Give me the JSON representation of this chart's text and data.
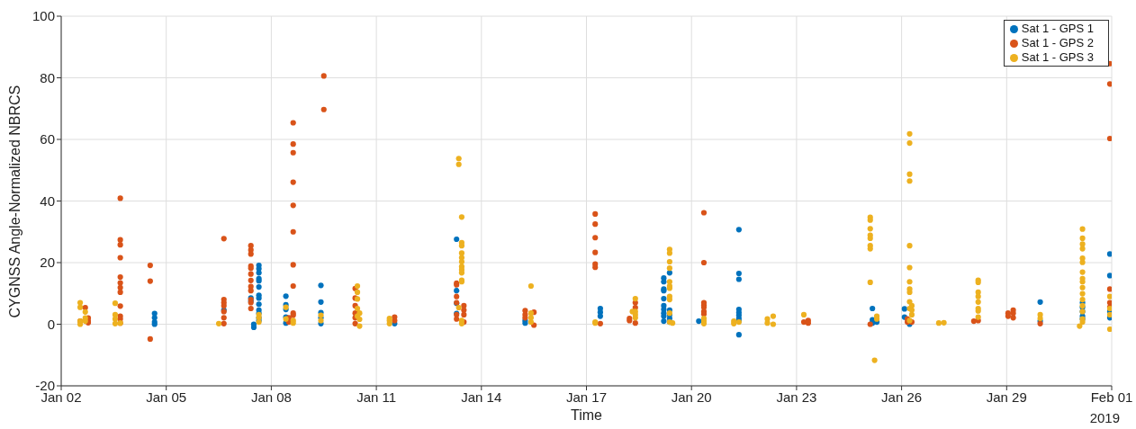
{
  "chart_data": {
    "type": "scatter",
    "xlabel": "Time",
    "ylabel": "CYGNSS Angle-Normalized NBRCS",
    "annotations": [
      "2019"
    ],
    "xlim": [
      "2019-01-02",
      "2019-02-01"
    ],
    "xticks": [
      {
        "value": "2019-01-02",
        "label": "Jan 02"
      },
      {
        "value": "2019-01-05",
        "label": "Jan 05"
      },
      {
        "value": "2019-01-08",
        "label": "Jan 08"
      },
      {
        "value": "2019-01-11",
        "label": "Jan 11"
      },
      {
        "value": "2019-01-14",
        "label": "Jan 14"
      },
      {
        "value": "2019-01-17",
        "label": "Jan 17"
      },
      {
        "value": "2019-01-20",
        "label": "Jan 20"
      },
      {
        "value": "2019-01-23",
        "label": "Jan 23"
      },
      {
        "value": "2019-01-26",
        "label": "Jan 26"
      },
      {
        "value": "2019-01-29",
        "label": "Jan 29"
      },
      {
        "value": "2019-02-01",
        "label": "Feb 01"
      }
    ],
    "ylim": [
      -20,
      100
    ],
    "yticks": [
      -20,
      0,
      20,
      40,
      60,
      80,
      100
    ],
    "grid": true,
    "legend": "top right",
    "marker": "circle",
    "series": [
      {
        "name": "Sat 1 - GPS 1",
        "color": "#0072bd",
        "x": [
          "2019-01-04T16:00",
          "2019-01-04T16:00",
          "2019-01-04T16:00",
          "2019-01-04T16:00",
          "2019-01-06T15:30",
          "2019-01-07T12:00",
          "2019-01-07T12:00",
          "2019-01-07T10:00",
          "2019-01-07T10:00",
          "2019-01-07T15:30",
          "2019-01-07T15:30",
          "2019-01-07T15:30",
          "2019-01-07T15:30",
          "2019-01-07T15:30",
          "2019-01-07T15:30",
          "2019-01-07T15:30",
          "2019-01-07T15:30",
          "2019-01-07T15:30",
          "2019-01-07T15:30",
          "2019-01-07T15:30",
          "2019-01-07T15:30",
          "2019-01-07T15:30",
          "2019-01-08T10:00",
          "2019-01-08T10:00",
          "2019-01-08T10:00",
          "2019-01-08T10:00",
          "2019-01-08T10:00",
          "2019-01-09T10:00",
          "2019-01-09T10:00",
          "2019-01-09T10:00",
          "2019-01-09T10:00",
          "2019-01-09T10:00",
          "2019-01-11T12:30",
          "2019-01-13T07:00",
          "2019-01-13T07:00",
          "2019-01-13T07:00",
          "2019-01-13T07:00",
          "2019-01-15T06:00",
          "2019-01-15T06:00",
          "2019-01-17T09:30",
          "2019-01-17T09:30",
          "2019-01-17T09:30",
          "2019-01-19T05:00",
          "2019-01-19T05:00",
          "2019-01-19T05:00",
          "2019-01-19T05:00",
          "2019-01-19T05:00",
          "2019-01-19T05:00",
          "2019-01-19T05:00",
          "2019-01-19T05:00",
          "2019-01-19T05:00",
          "2019-01-19T05:00",
          "2019-01-19T09:00",
          "2019-01-19T09:00",
          "2019-01-19T09:00",
          "2019-01-19T09:00",
          "2019-01-19T09:00",
          "2019-01-20T05:00",
          "2019-01-21T08:30",
          "2019-01-21T08:30",
          "2019-01-21T08:30",
          "2019-01-21T08:30",
          "2019-01-21T08:30",
          "2019-01-21T08:30",
          "2019-01-21T08:30",
          "2019-01-21T08:30",
          "2019-01-21T08:30",
          "2019-01-25T04:00",
          "2019-01-25T04:00",
          "2019-01-25T04:00",
          "2019-01-25T07:00",
          "2019-01-26T02:00",
          "2019-01-26T02:00",
          "2019-01-26T05:30",
          "2019-01-29T23:00",
          "2019-01-29T23:00",
          "2019-01-31T04:00",
          "2019-01-31T04:00",
          "2019-01-31T04:00",
          "2019-01-31T04:00",
          "2019-01-31T04:00",
          "2019-01-31T22:45",
          "2019-01-31T22:45",
          "2019-01-31T22:45",
          "2019-01-31T22:45"
        ],
        "values": [
          3.5,
          2.1,
          0.7,
          0,
          4.6,
          0,
          -1.0,
          8.5,
          7.5,
          19.1,
          18.0,
          16.7,
          14.8,
          14.1,
          12.1,
          9.4,
          8.5,
          6.5,
          4.6,
          3.6,
          2.1,
          1.2,
          9.1,
          6.3,
          4.8,
          2.3,
          0.4,
          12.6,
          7.2,
          3.8,
          2.1,
          0.2,
          0.2,
          27.6,
          10.9,
          6.8,
          3.5,
          1.2,
          0.4,
          5.1,
          3.9,
          2.6,
          15.0,
          13.8,
          11.4,
          10.9,
          8.3,
          6.0,
          4.8,
          3.6,
          2.6,
          1.0,
          16.7,
          4.6,
          3.1,
          1.9,
          0.7,
          1.0,
          30.7,
          16.5,
          14.6,
          4.8,
          3.8,
          2.9,
          1.9,
          1.0,
          -3.4,
          5.1,
          1.4,
          0.4,
          0.7,
          5.0,
          2.3,
          0,
          7.2,
          1.0,
          7.0,
          5.5,
          4.1,
          2.6,
          1.7,
          22.8,
          15.8,
          4.1,
          2.1
        ]
      },
      {
        "name": "Sat 1 - GPS 2",
        "color": "#d95319",
        "x": [
          "2019-01-02T13:00",
          "2019-01-02T16:30",
          "2019-01-02T18:30",
          "2019-01-02T18:30",
          "2019-01-02T18:30",
          "2019-01-03T16:30",
          "2019-01-03T16:30",
          "2019-01-03T16:30",
          "2019-01-03T16:30",
          "2019-01-03T16:30",
          "2019-01-03T16:30",
          "2019-01-03T16:30",
          "2019-01-03T16:30",
          "2019-01-03T16:30",
          "2019-01-03T16:30",
          "2019-01-03T16:30",
          "2019-01-03T16:30",
          "2019-01-04T13:00",
          "2019-01-04T13:00",
          "2019-01-04T13:00",
          "2019-01-06T15:30",
          "2019-01-06T15:30",
          "2019-01-06T15:30",
          "2019-01-06T15:30",
          "2019-01-06T15:30",
          "2019-01-06T15:30",
          "2019-01-06T15:30",
          "2019-01-07T10:00",
          "2019-01-07T10:00",
          "2019-01-07T10:00",
          "2019-01-07T10:00",
          "2019-01-07T10:00",
          "2019-01-07T10:00",
          "2019-01-07T10:00",
          "2019-01-07T10:00",
          "2019-01-07T10:00",
          "2019-01-07T10:00",
          "2019-01-07T10:00",
          "2019-01-07T10:00",
          "2019-01-08T12:00",
          "2019-01-08T12:00",
          "2019-01-08T15:00",
          "2019-01-08T15:00",
          "2019-01-08T15:00",
          "2019-01-08T15:00",
          "2019-01-08T15:00",
          "2019-01-08T15:00",
          "2019-01-08T15:00",
          "2019-01-08T15:00",
          "2019-01-08T15:00",
          "2019-01-08T15:00",
          "2019-01-09T12:00",
          "2019-01-09T12:00",
          "2019-01-10T09:30",
          "2019-01-10T09:30",
          "2019-01-10T09:30",
          "2019-01-10T09:30",
          "2019-01-10T09:30",
          "2019-01-10T09:30",
          "2019-01-11T12:30",
          "2019-01-11T12:30",
          "2019-01-13T07:00",
          "2019-01-13T07:00",
          "2019-01-13T07:00",
          "2019-01-13T07:00",
          "2019-01-13T07:00",
          "2019-01-13T07:00",
          "2019-01-13T12:00",
          "2019-01-13T12:00",
          "2019-01-13T12:00",
          "2019-01-13T12:00",
          "2019-01-15T06:00",
          "2019-01-15T06:00",
          "2019-01-15T06:00",
          "2019-01-15T12:00",
          "2019-01-15T12:00",
          "2019-01-17T06:00",
          "2019-01-17T06:00",
          "2019-01-17T06:00",
          "2019-01-17T06:00",
          "2019-01-17T06:00",
          "2019-01-17T06:00",
          "2019-01-17T09:30",
          "2019-01-18T05:30",
          "2019-01-18T05:30",
          "2019-01-18T09:30",
          "2019-01-18T09:30",
          "2019-01-18T09:30",
          "2019-01-20T08:30",
          "2019-01-20T08:30",
          "2019-01-20T08:30",
          "2019-01-20T08:30",
          "2019-01-20T08:30",
          "2019-01-20T08:30",
          "2019-01-20T08:30",
          "2019-01-23T05:00",
          "2019-01-23T08:00",
          "2019-01-23T08:00",
          "2019-01-25T02:30",
          "2019-01-26T04:00",
          "2019-01-26T04:00",
          "2019-01-26T07:00",
          "2019-01-28T01:30",
          "2019-01-28T04:30",
          "2019-01-29T01:00",
          "2019-01-29T01:00",
          "2019-01-29T04:30",
          "2019-01-29T04:30",
          "2019-01-29T04:30",
          "2019-01-29T23:00",
          "2019-01-31T22:45",
          "2019-01-31T22:45",
          "2019-01-31T22:45",
          "2019-01-31T22:45",
          "2019-01-31T22:45",
          "2019-01-31T22:45"
        ],
        "values": [
          1,
          5.4,
          2,
          1,
          0.5,
          40.9,
          27.4,
          25.8,
          21.6,
          15.3,
          13.4,
          11.9,
          10.4,
          5.9,
          2.6,
          1.7,
          0.4,
          19.1,
          14.0,
          -4.8,
          27.8,
          8.0,
          7.0,
          6.0,
          4.1,
          2.1,
          0.2,
          25.5,
          24.1,
          22.8,
          18.9,
          18.2,
          16.3,
          14.2,
          12.2,
          10.9,
          8.0,
          7.0,
          5.1,
          2.1,
          0.7,
          65.4,
          58.5,
          55.7,
          46.1,
          38.6,
          30.0,
          19.3,
          12.4,
          3.6,
          2.9,
          80.6,
          69.7,
          11.6,
          8.5,
          6.0,
          3.6,
          2.1,
          0.2,
          2.3,
          1.2,
          13.3,
          12.8,
          9.0,
          7.0,
          3.1,
          1.7,
          6.0,
          4.6,
          3.1,
          0.7,
          4.4,
          3.1,
          2.1,
          3.9,
          -0.3,
          35.8,
          32.5,
          28.1,
          23.3,
          19.5,
          18.5,
          0.2,
          1.9,
          1.2,
          7.0,
          5.4,
          0.4,
          36.2,
          20.0,
          7.0,
          6.2,
          5.5,
          4.1,
          3.3,
          0.7,
          1.2,
          0.4,
          0,
          1.7,
          0.7,
          0.7,
          1.0,
          1.2,
          3.6,
          2.6,
          4.6,
          3.6,
          2.1,
          0.2,
          84.6,
          78.0,
          60.3,
          11.4,
          7.0,
          5.5
        ]
      },
      {
        "name": "Sat 1 - GPS 3",
        "color": "#edb120",
        "x": [
          "2019-01-02T13:00",
          "2019-01-02T13:00",
          "2019-01-02T13:00",
          "2019-01-02T13:00",
          "2019-01-02T16:30",
          "2019-01-02T16:30",
          "2019-01-02T16:30",
          "2019-01-03T13:00",
          "2019-01-03T13:00",
          "2019-01-03T13:00",
          "2019-01-03T13:00",
          "2019-01-03T16:30",
          "2019-01-06T12:00",
          "2019-01-07T15:30",
          "2019-01-07T15:30",
          "2019-01-07T15:30",
          "2019-01-08T10:00",
          "2019-01-08T10:00",
          "2019-01-08T15:00",
          "2019-01-08T15:00",
          "2019-01-09T10:00",
          "2019-01-09T10:00",
          "2019-01-10T11:00",
          "2019-01-10T11:00",
          "2019-01-10T11:00",
          "2019-01-10T11:00",
          "2019-01-10T11:00",
          "2019-01-10T12:30",
          "2019-01-10T12:30",
          "2019-01-10T12:30",
          "2019-01-11T09:00",
          "2019-01-11T09:00",
          "2019-01-11T09:00",
          "2019-01-13T08:30",
          "2019-01-13T08:30",
          "2019-01-13T08:30",
          "2019-01-13T10:30",
          "2019-01-13T10:30",
          "2019-01-13T10:30",
          "2019-01-13T10:30",
          "2019-01-13T10:30",
          "2019-01-13T10:30",
          "2019-01-13T10:30",
          "2019-01-13T10:30",
          "2019-01-13T10:30",
          "2019-01-13T10:30",
          "2019-01-13T10:30",
          "2019-01-13T10:30",
          "2019-01-13T10:30",
          "2019-01-15T10:00",
          "2019-01-15T10:00",
          "2019-01-15T10:00",
          "2019-01-15T10:00",
          "2019-01-17T06:00",
          "2019-01-17T06:00",
          "2019-01-18T07:30",
          "2019-01-18T09:30",
          "2019-01-18T09:30",
          "2019-01-18T09:30",
          "2019-01-18T09:30",
          "2019-01-19T09:00",
          "2019-01-19T09:00",
          "2019-01-19T09:00",
          "2019-01-19T09:00",
          "2019-01-19T09:00",
          "2019-01-19T09:00",
          "2019-01-19T09:00",
          "2019-01-19T09:00",
          "2019-01-19T09:00",
          "2019-01-19T09:00",
          "2019-01-19T09:00",
          "2019-01-19T11:00",
          "2019-01-20T08:30",
          "2019-01-20T08:30",
          "2019-01-20T08:30",
          "2019-01-21T05:00",
          "2019-01-21T05:00",
          "2019-01-21T08:30",
          "2019-01-22T04:00",
          "2019-01-22T04:00",
          "2019-01-22T08:00",
          "2019-01-22T08:00",
          "2019-01-23T05:00",
          "2019-01-25T02:30",
          "2019-01-25T02:30",
          "2019-01-25T02:30",
          "2019-01-25T02:30",
          "2019-01-25T02:30",
          "2019-01-25T02:30",
          "2019-01-25T02:30",
          "2019-01-25T02:30",
          "2019-01-25T05:30",
          "2019-01-25T07:00",
          "2019-01-25T07:00",
          "2019-01-26T05:30",
          "2019-01-26T05:30",
          "2019-01-26T05:30",
          "2019-01-26T05:30",
          "2019-01-26T05:30",
          "2019-01-26T05:30",
          "2019-01-26T05:30",
          "2019-01-26T05:30",
          "2019-01-26T05:30",
          "2019-01-26T05:30",
          "2019-01-26T05:30",
          "2019-01-26T05:30",
          "2019-01-26T07:00",
          "2019-01-26T07:00",
          "2019-01-26T07:00",
          "2019-01-27T01:30",
          "2019-01-27T05:00",
          "2019-01-28T04:30",
          "2019-01-28T04:30",
          "2019-01-28T04:30",
          "2019-01-28T04:30",
          "2019-01-28T04:30",
          "2019-01-28T04:30",
          "2019-01-28T04:30",
          "2019-01-28T04:30",
          "2019-01-29T23:00",
          "2019-01-29T23:00",
          "2019-01-31T02:00",
          "2019-01-31T04:00",
          "2019-01-31T04:00",
          "2019-01-31T04:00",
          "2019-01-31T04:00",
          "2019-01-31T04:00",
          "2019-01-31T04:00",
          "2019-01-31T04:00",
          "2019-01-31T04:00",
          "2019-01-31T04:00",
          "2019-01-31T04:00",
          "2019-01-31T04:00",
          "2019-01-31T04:00",
          "2019-01-31T04:00",
          "2019-01-31T04:00",
          "2019-01-31T04:00",
          "2019-01-31T04:00",
          "2019-01-31T22:45",
          "2019-01-31T22:45",
          "2019-01-31T22:45",
          "2019-01-31T22:45"
        ],
        "values": [
          7.0,
          5.5,
          1,
          0,
          4,
          2,
          1,
          6.8,
          3.1,
          1.7,
          0.2,
          0.4,
          0.2,
          3.1,
          2.1,
          0.7,
          5.5,
          1.7,
          1.2,
          0.4,
          2.9,
          1.2,
          12.4,
          10.4,
          8.2,
          5.1,
          2.6,
          3.6,
          1.6,
          -0.6,
          1.9,
          1.2,
          0.2,
          53.8,
          51.9,
          5.4,
          34.8,
          26.5,
          25.5,
          23.1,
          21.6,
          20.3,
          18.7,
          17.7,
          16.7,
          14.3,
          13.8,
          1.2,
          0.2,
          12.4,
          3.6,
          2.1,
          0.7,
          0.7,
          0.4,
          4.1,
          8.3,
          4.1,
          3.1,
          2.1,
          24.3,
          23.1,
          20.3,
          18.2,
          13.8,
          12.4,
          11.7,
          9.0,
          8.0,
          3.6,
          0.7,
          0.4,
          1.9,
          1.0,
          0.2,
          1.0,
          0.2,
          0.7,
          1.7,
          0.4,
          2.6,
          0,
          3.1,
          34.7,
          33.8,
          31.0,
          28.9,
          27.9,
          25.5,
          24.5,
          13.6,
          -11.7,
          2.6,
          1.7,
          61.8,
          58.8,
          48.7,
          46.5,
          25.5,
          18.4,
          13.8,
          11.4,
          10.4,
          7.3,
          5.1,
          1.2,
          6.0,
          4.6,
          3.1,
          0.4,
          0.5,
          14.3,
          13.6,
          10.4,
          9.0,
          7.2,
          5.1,
          4.3,
          2.3,
          3.1,
          1.9,
          -0.6,
          30.9,
          27.9,
          26.0,
          24.5,
          21.4,
          20.1,
          16.9,
          14.8,
          13.8,
          11.9,
          9.9,
          8.0,
          6.0,
          4.1,
          1.7,
          0.7,
          9.0,
          5.1,
          3.1,
          -1.6
        ]
      }
    ]
  }
}
